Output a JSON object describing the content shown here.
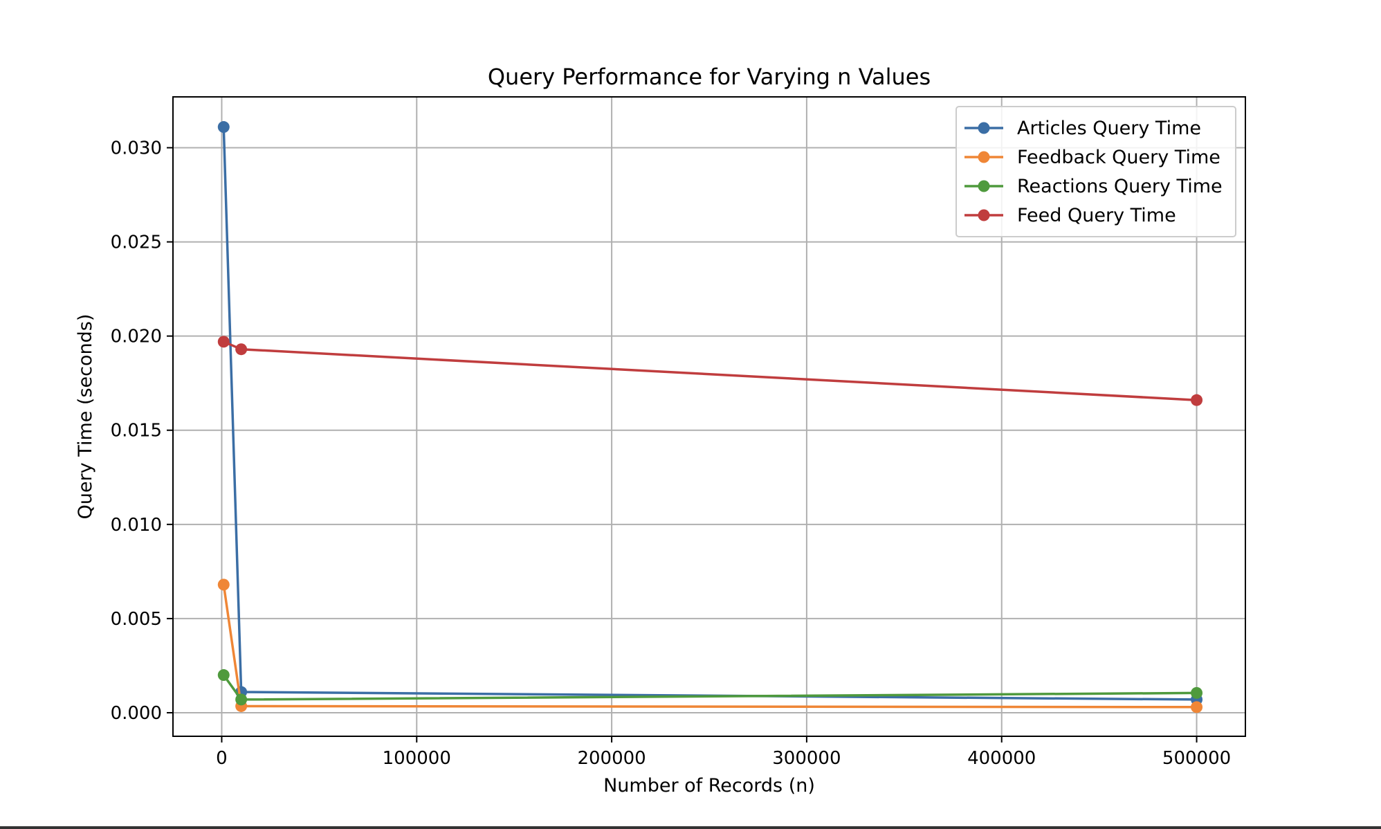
{
  "chart_data": {
    "type": "line",
    "title": "Query Performance for Varying n Values",
    "xlabel": "Number of Records (n)",
    "ylabel": "Query Time (seconds)",
    "xlim": [
      -25000,
      525000
    ],
    "ylim": [
      -0.00125,
      0.0327
    ],
    "xticks": [
      0,
      100000,
      200000,
      300000,
      400000,
      500000
    ],
    "xtick_labels": [
      "0",
      "100000",
      "200000",
      "300000",
      "400000",
      "500000"
    ],
    "yticks": [
      0.0,
      0.005,
      0.01,
      0.015,
      0.02,
      0.025,
      0.03
    ],
    "ytick_labels": [
      "0.000",
      "0.005",
      "0.010",
      "0.015",
      "0.020",
      "0.025",
      "0.030"
    ],
    "grid": true,
    "legend_position": "top-right",
    "marker": "circle",
    "x": [
      1000,
      10000,
      500000
    ],
    "series": [
      {
        "name": "Articles Query Time",
        "color": "#3b6ea5",
        "values": [
          0.0311,
          0.0011,
          0.0007
        ]
      },
      {
        "name": "Feedback Query Time",
        "color": "#ef8636",
        "values": [
          0.0068,
          0.00035,
          0.0003
        ]
      },
      {
        "name": "Reactions Query Time",
        "color": "#4f9a3d",
        "values": [
          0.002,
          0.0007,
          0.00105
        ]
      },
      {
        "name": "Feed Query Time",
        "color": "#c03d3e",
        "values": [
          0.0197,
          0.0193,
          0.0166
        ]
      }
    ]
  }
}
